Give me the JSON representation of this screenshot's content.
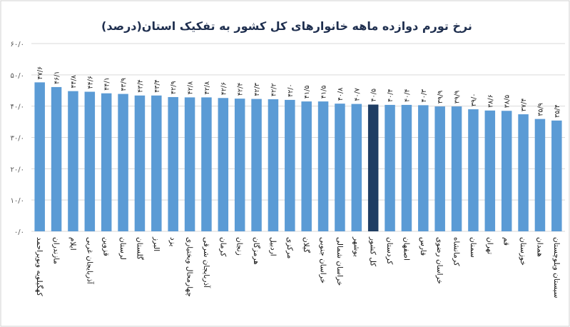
{
  "chart_data": {
    "type": "bar",
    "title": "نرخ تورم دوازده ماهه خانوارهای کل کشور به تفکیک استان(درصد)",
    "xlabel": "",
    "ylabel": "",
    "ylim": [
      0,
      60
    ],
    "yticks": [
      0,
      10,
      20,
      30,
      40,
      50,
      60
    ],
    "ytick_labels": [
      "۰/۰",
      "۱۰/۰",
      "۲۰/۰",
      "۳۰/۰",
      "۴۰/۰",
      "۵۰/۰",
      "۶۰/۰"
    ],
    "grid": true,
    "legend": "none",
    "categories": [
      "کهگیلویه وبویراحمد",
      "مازندران",
      "ایلام",
      "آذربایجان غربی",
      "قزوین",
      "لرستان",
      "گلستان",
      "البرز",
      "یزد",
      "چهارمحال وبختیاری",
      "آذربایجان شرقی",
      "کرمان",
      "زنجان",
      "هرمزگان",
      "اردبیل",
      "مرکزی",
      "گیلان",
      "خراسان جنوبی",
      "خراسان شمالی",
      "بوشهر",
      "کل کشور",
      "کردستان",
      "اصفهان",
      "فارس",
      "خراسان رضوی",
      "کرمانشاه",
      "سمنان",
      "تهران",
      "قم",
      "خوزستان",
      "همدان",
      "سیستان وبلوچستان"
    ],
    "values": [
      47.6,
      46.1,
      44.8,
      44.6,
      44.1,
      43.9,
      43.4,
      43.4,
      42.9,
      42.8,
      42.8,
      42.6,
      42.4,
      42.3,
      42.2,
      42.0,
      41.5,
      41.5,
      40.8,
      40.7,
      40.5,
      40.4,
      40.4,
      40.3,
      39.9,
      39.9,
      39.0,
      38.6,
      38.5,
      37.4,
      35.9,
      35.4
    ],
    "value_labels": [
      "۴۷/۶",
      "۴۶/۱",
      "۴۴/۸",
      "۴۴/۶",
      "۴۴/۱",
      "۴۳/۹",
      "۴۳/۴",
      "۴۳/۴",
      "۴۲/۹",
      "۴۲/۸",
      "۴۲/۸",
      "۴۲/۶",
      "۴۲/۴",
      "۴۲/۳",
      "۴۲/۲",
      "۴۲/۰",
      "۴۱/۵",
      "۴۱/۵",
      "۴۰/۸",
      "۴۰/۷",
      "۴۰/۵",
      "۴۰/۴",
      "۴۰/۴",
      "۴۰/۳",
      "۳۹/۹",
      "۳۹/۹",
      "۳۹/۰",
      "۳۸/۶",
      "۳۸/۵",
      "۳۷/۴",
      "۳۵/۹",
      "۳۵/۴"
    ],
    "highlight_category": "کل کشور",
    "colors": {
      "bar": "#5b9bd5",
      "highlight": "#1f3d63",
      "grid": "#d9d9d9",
      "title": "#1f2f4f"
    }
  }
}
